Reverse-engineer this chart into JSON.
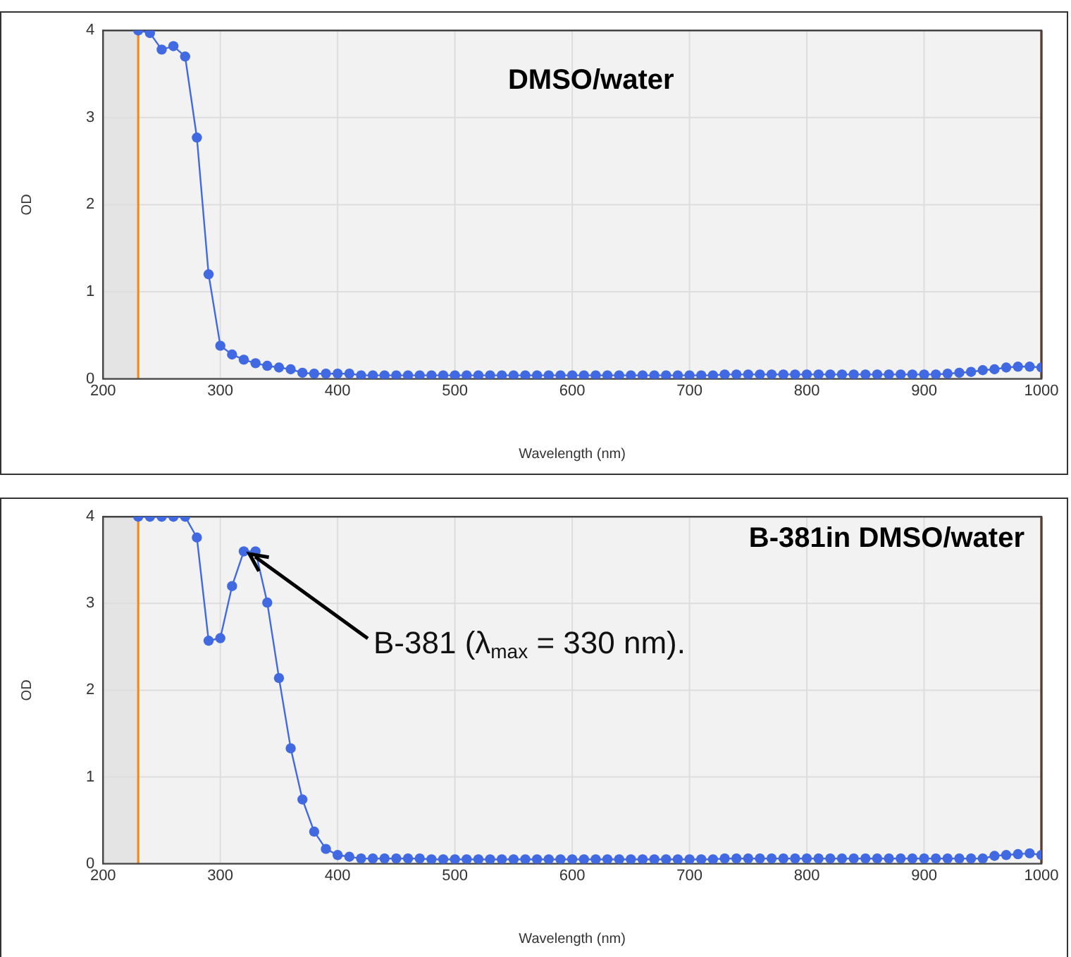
{
  "chart_data": [
    {
      "type": "line",
      "title": "DMSO/water",
      "xlabel": "Wavelength (nm)",
      "ylabel": "OD",
      "x": [
        230,
        240,
        250,
        260,
        270,
        280,
        290,
        300,
        310,
        320,
        330,
        340,
        350,
        360,
        370,
        380,
        390,
        400,
        410,
        420,
        430,
        440,
        450,
        460,
        470,
        480,
        490,
        500,
        510,
        520,
        530,
        540,
        550,
        560,
        570,
        580,
        590,
        600,
        610,
        620,
        630,
        640,
        650,
        660,
        670,
        680,
        690,
        700,
        710,
        720,
        730,
        740,
        750,
        760,
        770,
        780,
        790,
        800,
        810,
        820,
        830,
        840,
        850,
        860,
        870,
        880,
        890,
        900,
        910,
        920,
        930,
        940,
        950,
        960,
        970,
        980,
        990,
        1000
      ],
      "series": [
        {
          "color": "#4169e1",
          "values": [
            4.0,
            3.97,
            3.78,
            3.82,
            3.7,
            2.77,
            1.2,
            0.38,
            0.28,
            0.22,
            0.18,
            0.15,
            0.13,
            0.11,
            0.07,
            0.06,
            0.06,
            0.06,
            0.06,
            0.04,
            0.04,
            0.04,
            0.04,
            0.04,
            0.04,
            0.04,
            0.04,
            0.04,
            0.04,
            0.04,
            0.04,
            0.04,
            0.04,
            0.04,
            0.04,
            0.04,
            0.04,
            0.04,
            0.04,
            0.04,
            0.04,
            0.04,
            0.04,
            0.04,
            0.04,
            0.04,
            0.04,
            0.04,
            0.04,
            0.04,
            0.05,
            0.05,
            0.05,
            0.05,
            0.05,
            0.05,
            0.05,
            0.05,
            0.05,
            0.05,
            0.05,
            0.05,
            0.05,
            0.05,
            0.05,
            0.05,
            0.05,
            0.05,
            0.05,
            0.06,
            0.07,
            0.08,
            0.1,
            0.11,
            0.13,
            0.14,
            0.14,
            0.13
          ]
        }
      ],
      "xlim": [
        200,
        1000
      ],
      "ylim": [
        0,
        4
      ],
      "xticks": [
        200,
        300,
        400,
        500,
        600,
        700,
        800,
        900,
        1000
      ],
      "yticks": [
        0,
        1,
        2,
        3,
        4
      ],
      "grid": true,
      "marker": "circle",
      "ref_lines": [
        {
          "axis": "x",
          "value": 230,
          "color": "#f08a24"
        },
        {
          "axis": "x",
          "value": 1000,
          "color": "#8b2500"
        }
      ],
      "bands": [
        {
          "axis": "x",
          "from": 200,
          "to": 230,
          "color": "#e4e4e4"
        }
      ]
    },
    {
      "type": "line",
      "title": "B-381in DMSO/water",
      "xlabel": "Wavelength (nm)",
      "ylabel": "OD",
      "x": [
        230,
        240,
        250,
        260,
        270,
        280,
        290,
        300,
        310,
        320,
        330,
        340,
        350,
        360,
        370,
        380,
        390,
        400,
        410,
        420,
        430,
        440,
        450,
        460,
        470,
        480,
        490,
        500,
        510,
        520,
        530,
        540,
        550,
        560,
        570,
        580,
        590,
        600,
        610,
        620,
        630,
        640,
        650,
        660,
        670,
        680,
        690,
        700,
        710,
        720,
        730,
        740,
        750,
        760,
        770,
        780,
        790,
        800,
        810,
        820,
        830,
        840,
        850,
        860,
        870,
        880,
        890,
        900,
        910,
        920,
        930,
        940,
        950,
        960,
        970,
        980,
        990,
        1000
      ],
      "series": [
        {
          "color": "#4169e1",
          "values": [
            4,
            4,
            4,
            4,
            4,
            3.76,
            2.57,
            2.6,
            3.2,
            3.6,
            3.6,
            3.01,
            2.14,
            1.33,
            0.74,
            0.37,
            0.17,
            0.1,
            0.08,
            0.06,
            0.06,
            0.06,
            0.06,
            0.06,
            0.06,
            0.05,
            0.05,
            0.05,
            0.05,
            0.05,
            0.05,
            0.05,
            0.05,
            0.05,
            0.05,
            0.05,
            0.05,
            0.05,
            0.05,
            0.05,
            0.05,
            0.05,
            0.05,
            0.05,
            0.05,
            0.05,
            0.05,
            0.05,
            0.05,
            0.05,
            0.06,
            0.06,
            0.06,
            0.06,
            0.06,
            0.06,
            0.06,
            0.06,
            0.06,
            0.06,
            0.06,
            0.06,
            0.06,
            0.06,
            0.06,
            0.06,
            0.06,
            0.06,
            0.06,
            0.06,
            0.06,
            0.06,
            0.06,
            0.09,
            0.1,
            0.11,
            0.12,
            0.1
          ]
        }
      ],
      "xlim": [
        200,
        1000
      ],
      "ylim": [
        0,
        4
      ],
      "xticks": [
        200,
        300,
        400,
        500,
        600,
        700,
        800,
        900,
        1000
      ],
      "yticks": [
        0,
        1,
        2,
        3,
        4
      ],
      "grid": true,
      "marker": "circle",
      "annotations": [
        {
          "text": "B-381 (λ$_{max}$ = 330 nm).",
          "x": 320,
          "y": 3.6
        }
      ],
      "ref_lines": [
        {
          "axis": "x",
          "value": 230,
          "color": "#f08a24"
        },
        {
          "axis": "x",
          "value": 1000,
          "color": "#8b2500"
        }
      ],
      "bands": [
        {
          "axis": "x",
          "from": 200,
          "to": 230,
          "color": "#e4e4e4"
        }
      ]
    }
  ]
}
